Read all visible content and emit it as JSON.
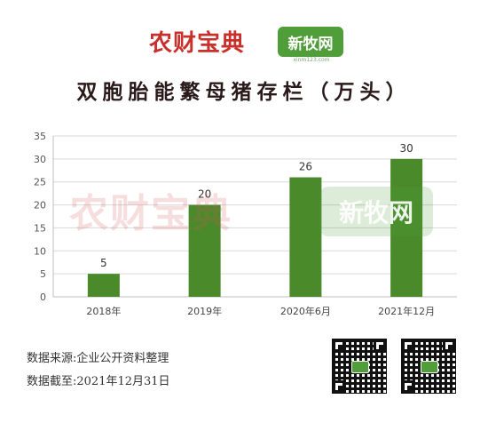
{
  "header": {
    "brand_name": "农财宝典",
    "partner_name": "新牧网",
    "partner_url": "xinm123.com"
  },
  "chart_data": {
    "type": "bar",
    "title": "双胞胎能繁母猪存栏（万头）",
    "categories": [
      "2018年",
      "2019年",
      "2020年6月",
      "2021年12月"
    ],
    "values": [
      5,
      20,
      26,
      30
    ],
    "ylim": [
      0,
      35
    ],
    "yticks": [
      0,
      5,
      10,
      15,
      20,
      25,
      30,
      35
    ],
    "xlabel": "",
    "ylabel": "",
    "grid": true,
    "bar_color": "#4a8a2a",
    "data_labels": true
  },
  "footer": {
    "source": "数据来源:企业公开资料整理",
    "date": "数据截至:2021年12月31日"
  }
}
